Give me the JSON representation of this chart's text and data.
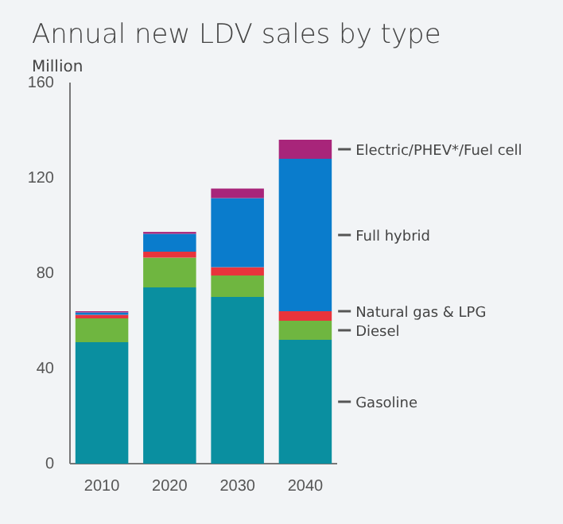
{
  "chart_data": {
    "type": "bar",
    "title": "Annual new LDV sales by type",
    "ylabel": "Million",
    "categories": [
      "2010",
      "2020",
      "2030",
      "2040"
    ],
    "stacked": true,
    "legend": "right",
    "ylim": [
      0,
      160
    ],
    "yticks": [
      0,
      40,
      80,
      120,
      160
    ],
    "series": [
      {
        "name": "Gasoline",
        "color": "#0a8fa0",
        "values": [
          51,
          74,
          70,
          52
        ]
      },
      {
        "name": "Diesel",
        "color": "#6fb640",
        "values": [
          10,
          12.5,
          9,
          8
        ]
      },
      {
        "name": "Natural gas  & LPG",
        "color": "#e8343c",
        "values": [
          1.5,
          2.5,
          3.5,
          4
        ]
      },
      {
        "name": "Full hybrid",
        "color": "#0a7ccc",
        "values": [
          1,
          7.5,
          29,
          64
        ]
      },
      {
        "name": "Electric/PHEV*/Fuel cell",
        "color": "#a8257a",
        "values": [
          0.5,
          0.8,
          4,
          8
        ]
      }
    ]
  }
}
